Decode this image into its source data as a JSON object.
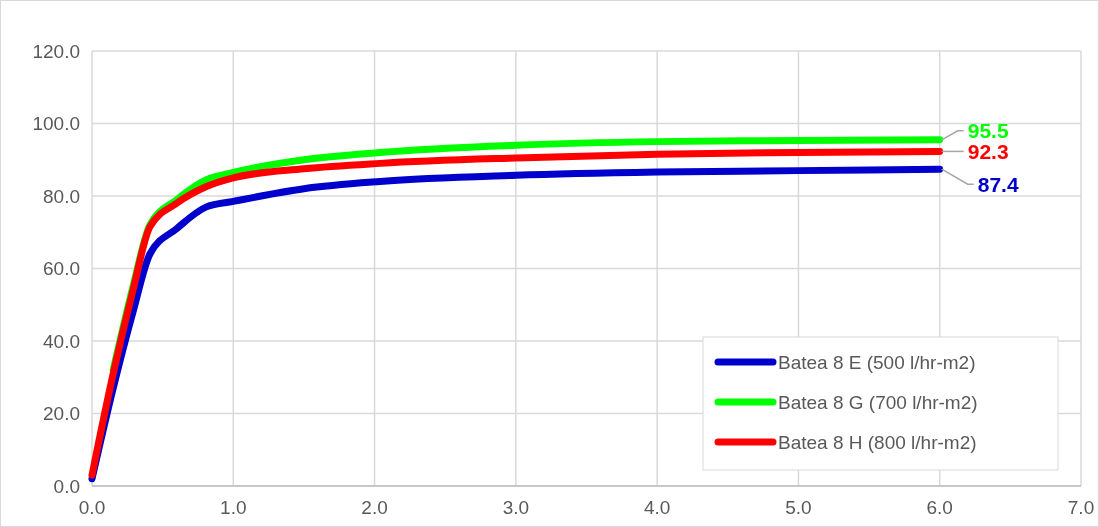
{
  "chart_data": {
    "type": "line",
    "x": [
      0,
      0.15,
      0.29,
      0.41,
      0.6,
      0.81,
      1.0,
      1.5,
      2.04,
      3,
      4,
      5,
      6
    ],
    "series": [
      {
        "name": "Batea 8 E (500 l/hr-m2)",
        "color": "#0000cc",
        "values": [
          2,
          27,
          48,
          64,
          71,
          77,
          78.5,
          82,
          84,
          85.7,
          86.6,
          87,
          87.4
        ],
        "value_labels": [
          null,
          null,
          null,
          null,
          null,
          null,
          null,
          null,
          null,
          null,
          null,
          null,
          "87.4"
        ]
      },
      {
        "name": "Batea 8 G (700 l/hr-m2)",
        "color": "#00ff00",
        "values": [
          null,
          32,
          55,
          72,
          79,
          84.5,
          86.5,
          90,
          92,
          94,
          95,
          95.3,
          95.5
        ],
        "value_labels": [
          null,
          null,
          null,
          null,
          null,
          null,
          null,
          null,
          null,
          null,
          null,
          null,
          "95.5"
        ]
      },
      {
        "name": "Batea 8 H (800 l/hr-m2)",
        "color": "#ff0000",
        "values": [
          3,
          31,
          54,
          71.5,
          78,
          82.6,
          85,
          87.5,
          89,
          90.5,
          91.5,
          92,
          92.3
        ],
        "value_labels": [
          null,
          null,
          null,
          null,
          null,
          null,
          null,
          null,
          null,
          null,
          null,
          null,
          "92.3"
        ]
      }
    ],
    "xlim": [
      0,
      7
    ],
    "xticks": [
      {
        "value": 0,
        "label": "0.0"
      },
      {
        "value": 1,
        "label": "1.0"
      },
      {
        "value": 2,
        "label": "2.0"
      },
      {
        "value": 3,
        "label": "3.0"
      },
      {
        "value": 4,
        "label": "4.0"
      },
      {
        "value": 5,
        "label": "5.0"
      },
      {
        "value": 6,
        "label": "6.0"
      },
      {
        "value": 7,
        "label": "7.0"
      }
    ],
    "ylim": [
      0,
      120
    ],
    "yticks": [
      {
        "value": 0,
        "label": "0.0"
      },
      {
        "value": 20,
        "label": "20.0"
      },
      {
        "value": 40,
        "label": "40.0"
      },
      {
        "value": 60,
        "label": "60.0"
      },
      {
        "value": 80,
        "label": "80.0"
      },
      {
        "value": 100,
        "label": "100.0"
      },
      {
        "value": 120,
        "label": "120.0"
      }
    ],
    "grid": true,
    "legend": "bottom right",
    "marker": "none",
    "line_style": "solid"
  }
}
